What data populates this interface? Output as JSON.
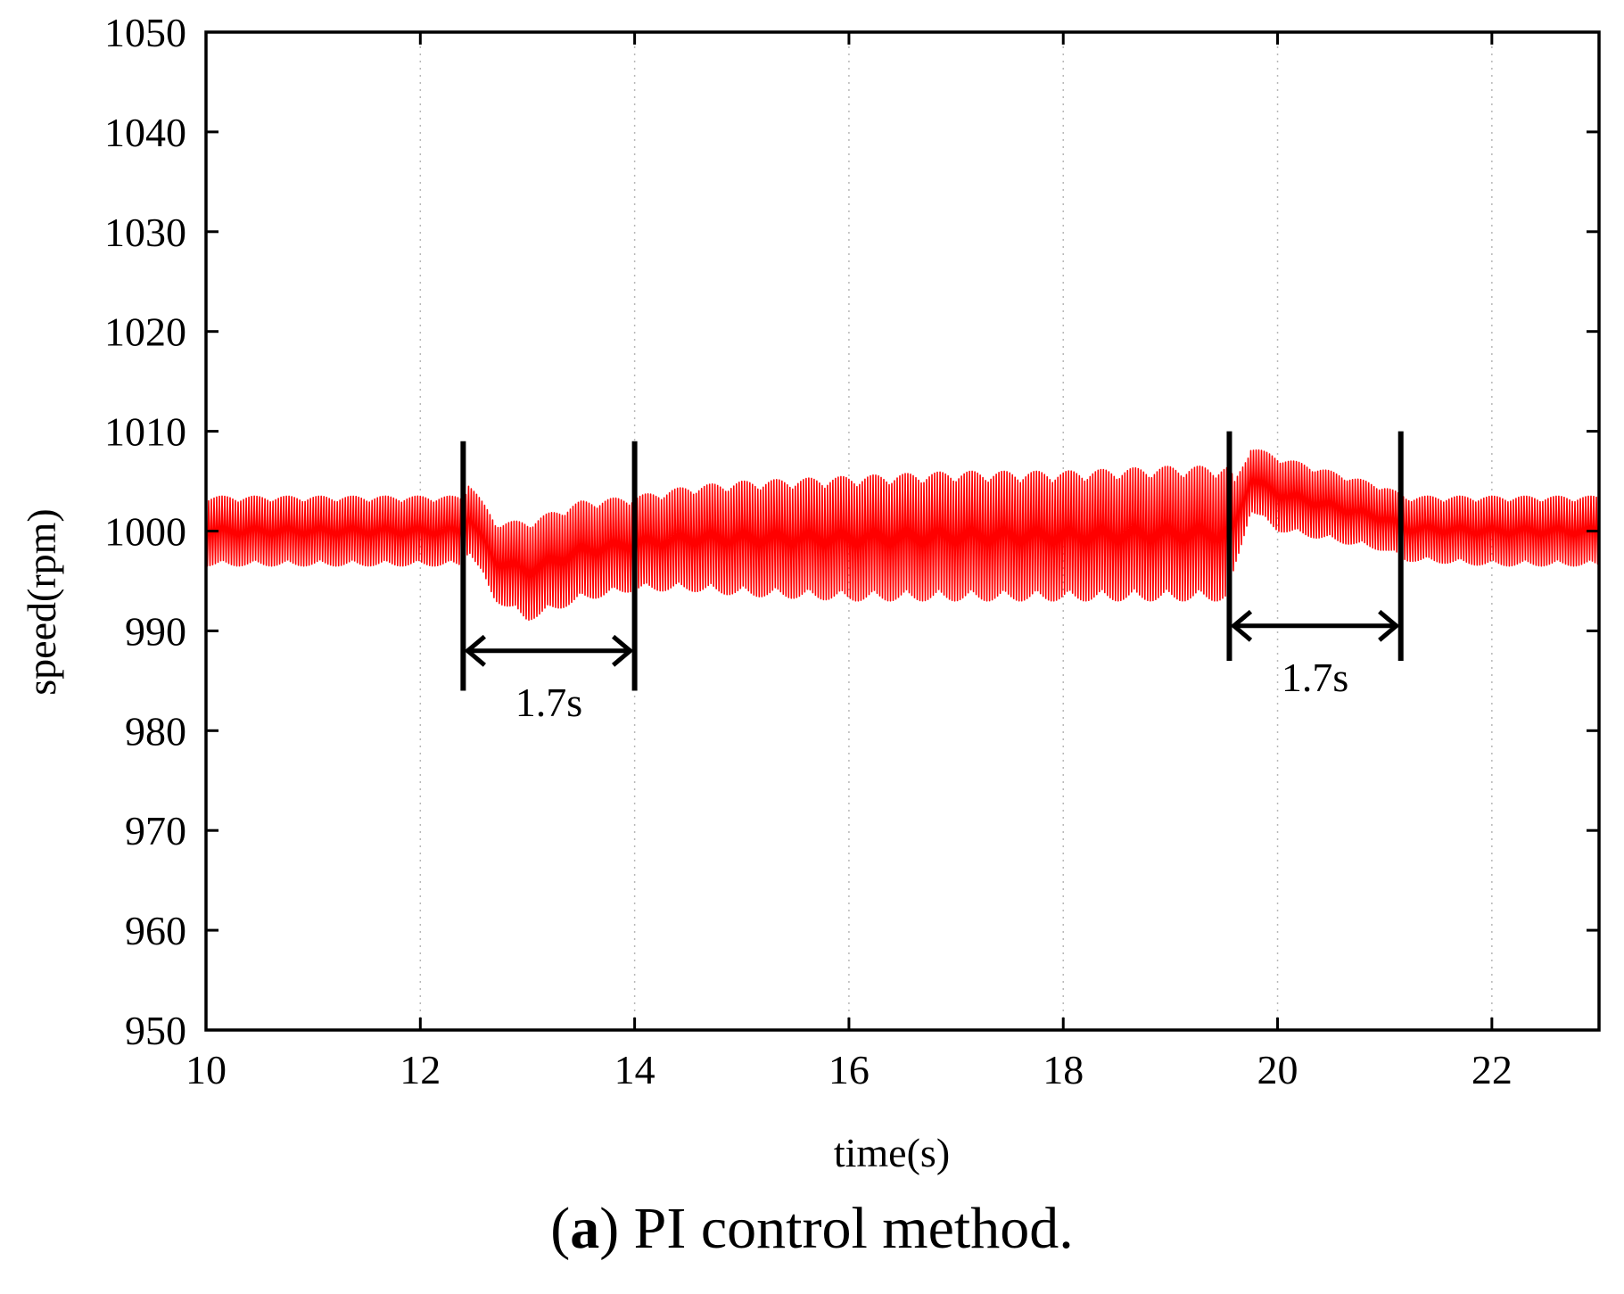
{
  "chart_data": {
    "type": "line",
    "title": "",
    "xlabel": "time(s)",
    "ylabel": "speed(rpm)",
    "xlim": [
      10,
      23
    ],
    "ylim": [
      950,
      1050
    ],
    "x_ticks": [
      "10",
      "12",
      "14",
      "16",
      "18",
      "20",
      "22"
    ],
    "y_ticks": [
      "950",
      "960",
      "970",
      "980",
      "990",
      "1000",
      "1010",
      "1020",
      "1030",
      "1040",
      "1050"
    ],
    "grid": "vertical-dotted",
    "series": [
      {
        "name": "speed",
        "color": "#ff0000",
        "envelope": {
          "t": [
            10.0,
            12.4,
            12.45,
            12.7,
            13.0,
            13.5,
            14.0,
            14.5,
            15.0,
            16.0,
            17.0,
            18.0,
            19.0,
            19.55,
            19.6,
            19.75,
            20.0,
            20.5,
            21.0,
            21.2,
            22.0,
            23.0
          ],
          "upper": [
            1003.5,
            1003.5,
            1005,
            1001,
            1001,
            1003,
            1003.5,
            1004.5,
            1005,
            1005.5,
            1006,
            1006,
            1006.5,
            1006.5,
            1005,
            1008.5,
            1007.5,
            1006,
            1004.5,
            1003.5,
            1003.5,
            1003.5
          ],
          "lower": [
            996.5,
            996.5,
            998,
            993,
            991,
            993,
            994,
            994,
            993.5,
            993,
            993,
            993,
            993,
            993,
            996,
            1002,
            1000,
            999,
            998,
            997,
            996.5,
            996.5
          ]
        }
      }
    ],
    "annotations": [
      {
        "label": "1.7s",
        "t_start": 12.4,
        "t_end": 14.0,
        "marker_top": 1009,
        "marker_bottom": 984,
        "arrow_y": 988
      },
      {
        "label": "1.7s",
        "t_start": 19.55,
        "t_end": 21.15,
        "marker_top": 1010,
        "marker_bottom": 987,
        "arrow_y": 990.5
      }
    ]
  },
  "caption": {
    "label": "a",
    "text": " PI control method."
  }
}
